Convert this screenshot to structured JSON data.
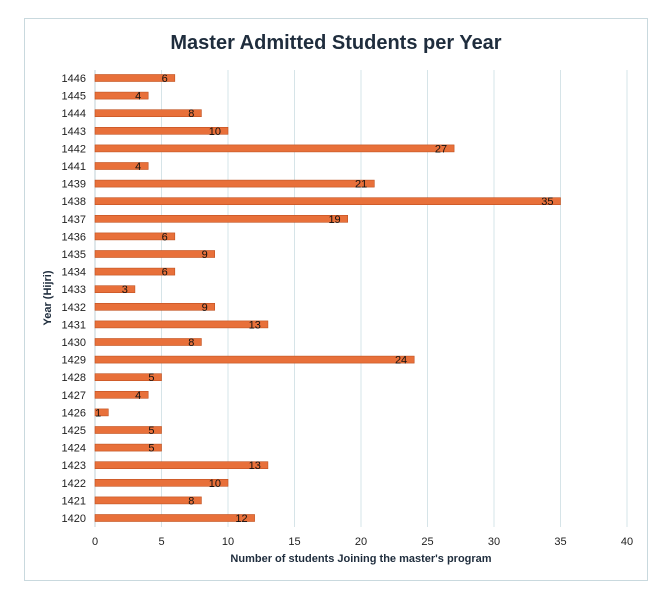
{
  "chart_data": {
    "type": "bar",
    "orientation": "horizontal",
    "title": "Master Admitted Students per Year",
    "xlabel": "Number of students Joining the master's program",
    "ylabel": "Year (Hijri)",
    "xlim": [
      0,
      40
    ],
    "x_ticks": [
      0,
      5,
      10,
      15,
      20,
      25,
      30,
      35,
      40
    ],
    "grid": true,
    "legend": "none",
    "bar_color": "#e8703a",
    "bar_edge_color": "#c0501f",
    "categories": [
      "1446",
      "1445",
      "1444",
      "1443",
      "1442",
      "1441",
      "1439",
      "1438",
      "1437",
      "1436",
      "1435",
      "1434",
      "1433",
      "1432",
      "1431",
      "1430",
      "1429",
      "1428",
      "1427",
      "1426",
      "1425",
      "1424",
      "1423",
      "1422",
      "1421",
      "1420"
    ],
    "values": [
      6,
      4,
      8,
      10,
      27,
      4,
      21,
      35,
      19,
      6,
      9,
      6,
      3,
      9,
      13,
      8,
      24,
      5,
      4,
      1,
      5,
      5,
      13,
      10,
      8,
      12
    ]
  }
}
